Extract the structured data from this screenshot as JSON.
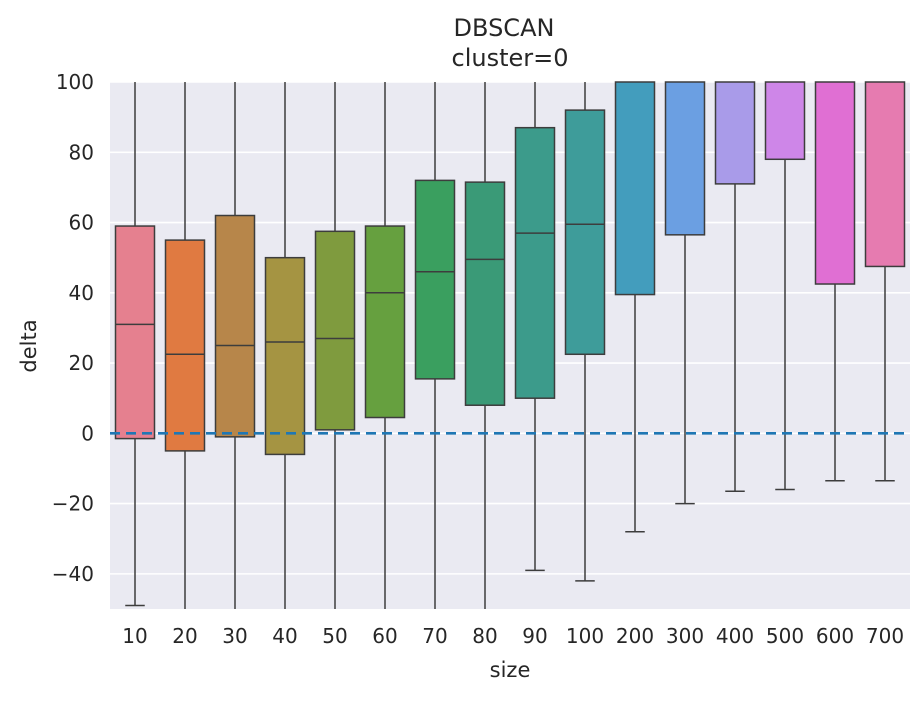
{
  "chart_data": {
    "type": "box",
    "title": "DBSCAN",
    "subtitle": "cluster=0",
    "xlabel": "size",
    "ylabel": "delta",
    "ylim": [
      -50,
      100
    ],
    "yticks": [
      -40,
      -20,
      0,
      20,
      40,
      60,
      80,
      100
    ],
    "grid": true,
    "reference_line": {
      "y": 0,
      "style": "dashed",
      "color": "#1f77b4"
    },
    "categories": [
      "10",
      "20",
      "30",
      "40",
      "50",
      "60",
      "70",
      "80",
      "90",
      "100",
      "200",
      "300",
      "400",
      "500",
      "600",
      "700"
    ],
    "boxes": [
      {
        "category": "10",
        "whisker_low": -49,
        "q1": -1.5,
        "median": 31,
        "q3": 59,
        "whisker_high": 100,
        "color": "#e5808f"
      },
      {
        "category": "20",
        "whisker_low": -50,
        "q1": -5,
        "median": 22.5,
        "q3": 55,
        "whisker_high": 100,
        "color": "#e07a41"
      },
      {
        "category": "30",
        "whisker_low": -50,
        "q1": -1,
        "median": 25,
        "q3": 62,
        "whisker_high": 100,
        "color": "#b7864a"
      },
      {
        "category": "40",
        "whisker_low": -50,
        "q1": -6,
        "median": 26,
        "q3": 50,
        "whisker_high": 100,
        "color": "#a59442"
      },
      {
        "category": "50",
        "whisker_low": -50,
        "q1": 1,
        "median": 27,
        "q3": 57.5,
        "whisker_high": 100,
        "color": "#7f9b3e"
      },
      {
        "category": "60",
        "whisker_low": -50,
        "q1": 4.5,
        "median": 40,
        "q3": 59,
        "whisker_high": 100,
        "color": "#66a03f"
      },
      {
        "category": "70",
        "whisker_low": -50,
        "q1": 15.5,
        "median": 46,
        "q3": 72,
        "whisker_high": 100,
        "color": "#3a9f5f"
      },
      {
        "category": "80",
        "whisker_low": -50,
        "q1": 8,
        "median": 49.5,
        "q3": 71.5,
        "whisker_high": 100,
        "color": "#3a9a77"
      },
      {
        "category": "90",
        "whisker_low": -39,
        "q1": 10,
        "median": 57,
        "q3": 87,
        "whisker_high": 100,
        "color": "#3c9b8b"
      },
      {
        "category": "100",
        "whisker_low": -42,
        "q1": 22.5,
        "median": 59.5,
        "q3": 92,
        "whisker_high": 100,
        "color": "#3e9c9a"
      },
      {
        "category": "200",
        "whisker_low": -28,
        "q1": 39.5,
        "median": 100,
        "q3": 100,
        "whisker_high": 100,
        "color": "#439dbd"
      },
      {
        "category": "300",
        "whisker_low": -20,
        "q1": 56.5,
        "median": 100,
        "q3": 100,
        "whisker_high": 100,
        "color": "#6b9fe2"
      },
      {
        "category": "400",
        "whisker_low": -16.5,
        "q1": 71,
        "median": 100,
        "q3": 100,
        "whisker_high": 100,
        "color": "#a99be9"
      },
      {
        "category": "500",
        "whisker_low": -16,
        "q1": 78,
        "median": 100,
        "q3": 100,
        "whisker_high": 100,
        "color": "#ce86e8"
      },
      {
        "category": "600",
        "whisker_low": -13.5,
        "q1": 42.5,
        "median": 100,
        "q3": 100,
        "whisker_high": 100,
        "color": "#e06fd3"
      },
      {
        "category": "700",
        "whisker_low": -13.5,
        "q1": 47.5,
        "median": 100,
        "q3": 100,
        "whisker_high": 100,
        "color": "#e67bb0"
      }
    ]
  }
}
